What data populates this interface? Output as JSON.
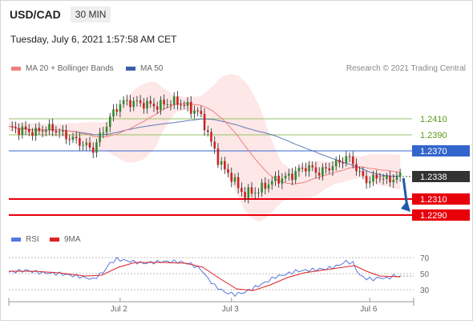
{
  "header": {
    "pair": "USD/CAD",
    "timeframe": "30 MIN",
    "datetime": "Tuesday, July 6, 2021 1:57:58 AM CET"
  },
  "legend": {
    "ma20": "MA 20 + Bollinger Bands",
    "ma50": "MA 50",
    "rsi": "RSI",
    "nine_ma": "9MA",
    "credit": "Research © 2021 Trading Central"
  },
  "colors": {
    "ma20": "#f08080",
    "ma50": "#3a5fa8",
    "bollinger_fill": "#fde3e3",
    "candle_up": "#2e8b2e",
    "candle_down": "#cc2222",
    "resistance": "#99c266",
    "pivot": "#3366cc",
    "support": "#e8000b",
    "price_tag": "#333333",
    "rsi": "#5577dd",
    "rsi_ma": "#dd2222"
  },
  "chart_data": [
    {
      "type": "candlestick",
      "title": "USD/CAD",
      "x_ticks": [
        "Jul 2",
        "Jul 3",
        "Jul 6"
      ],
      "ylim": [
        1.227,
        1.245
      ],
      "key_levels": [
        {
          "label": "1.2410",
          "value": 1.241,
          "kind": "resistance"
        },
        {
          "label": "1.2390",
          "value": 1.239,
          "kind": "resistance"
        },
        {
          "label": "1.2370",
          "value": 1.237,
          "kind": "pivot"
        },
        {
          "label": "1.2338",
          "value": 1.2338,
          "kind": "last"
        },
        {
          "label": "1.2310",
          "value": 1.231,
          "kind": "support"
        },
        {
          "label": "1.2290",
          "value": 1.229,
          "kind": "support"
        }
      ],
      "price_path": [
        [
          0,
          1.2398
        ],
        [
          8,
          1.2396
        ],
        [
          16,
          1.2393
        ],
        [
          22,
          1.2398
        ],
        [
          28,
          1.2396
        ],
        [
          34,
          1.2388
        ],
        [
          40,
          1.2383
        ],
        [
          46,
          1.2376
        ],
        [
          50,
          1.2372
        ],
        [
          54,
          1.2388
        ],
        [
          58,
          1.2403
        ],
        [
          62,
          1.2418
        ],
        [
          66,
          1.2429
        ],
        [
          70,
          1.2431
        ],
        [
          76,
          1.243
        ],
        [
          82,
          1.2428
        ],
        [
          88,
          1.2426
        ],
        [
          94,
          1.243
        ],
        [
          100,
          1.2431
        ],
        [
          104,
          1.2427
        ],
        [
          108,
          1.2422
        ],
        [
          112,
          1.2419
        ],
        [
          116,
          1.2403
        ],
        [
          120,
          1.238
        ],
        [
          124,
          1.236
        ],
        [
          128,
          1.2346
        ],
        [
          132,
          1.2338
        ],
        [
          136,
          1.2324
        ],
        [
          140,
          1.2316
        ],
        [
          144,
          1.2319
        ],
        [
          148,
          1.232
        ],
        [
          152,
          1.2327
        ],
        [
          156,
          1.2332
        ],
        [
          160,
          1.2335
        ],
        [
          164,
          1.2337
        ],
        [
          168,
          1.234
        ],
        [
          172,
          1.2346
        ],
        [
          176,
          1.235
        ],
        [
          180,
          1.2347
        ],
        [
          184,
          1.2343
        ],
        [
          188,
          1.2347
        ],
        [
          192,
          1.2352
        ],
        [
          196,
          1.2356
        ],
        [
          200,
          1.2362
        ],
        [
          204,
          1.2356
        ],
        [
          208,
          1.2341
        ],
        [
          212,
          1.2333
        ],
        [
          216,
          1.2335
        ],
        [
          220,
          1.2338
        ],
        [
          224,
          1.2333
        ],
        [
          228,
          1.2336
        ],
        [
          232,
          1.2338
        ]
      ],
      "forecast": {
        "from": 1.2338,
        "to": 1.229
      }
    },
    {
      "type": "line",
      "title": "RSI",
      "ylim": [
        20,
        80
      ],
      "y_ticks": [
        70,
        50,
        30
      ],
      "series_names": [
        "RSI",
        "9MA"
      ],
      "rsi_path": [
        [
          0,
          52
        ],
        [
          10,
          54
        ],
        [
          20,
          51
        ],
        [
          30,
          50
        ],
        [
          40,
          47
        ],
        [
          50,
          43
        ],
        [
          56,
          52
        ],
        [
          60,
          63
        ],
        [
          64,
          68
        ],
        [
          70,
          66
        ],
        [
          80,
          63
        ],
        [
          90,
          65
        ],
        [
          100,
          65
        ],
        [
          108,
          62
        ],
        [
          114,
          55
        ],
        [
          118,
          44
        ],
        [
          122,
          35
        ],
        [
          128,
          27
        ],
        [
          134,
          24
        ],
        [
          140,
          27
        ],
        [
          146,
          33
        ],
        [
          152,
          39
        ],
        [
          158,
          46
        ],
        [
          164,
          49
        ],
        [
          170,
          53
        ],
        [
          176,
          54
        ],
        [
          182,
          55
        ],
        [
          188,
          56
        ],
        [
          194,
          59
        ],
        [
          200,
          65
        ],
        [
          204,
          63
        ],
        [
          208,
          48
        ],
        [
          212,
          44
        ],
        [
          216,
          43
        ],
        [
          220,
          45
        ],
        [
          224,
          44
        ],
        [
          228,
          47
        ],
        [
          232,
          47
        ]
      ],
      "ma_path": [
        [
          0,
          53
        ],
        [
          15,
          53
        ],
        [
          30,
          51
        ],
        [
          45,
          47
        ],
        [
          55,
          48
        ],
        [
          65,
          58
        ],
        [
          75,
          64
        ],
        [
          90,
          64
        ],
        [
          105,
          63
        ],
        [
          115,
          58
        ],
        [
          125,
          44
        ],
        [
          135,
          31
        ],
        [
          145,
          29
        ],
        [
          155,
          36
        ],
        [
          165,
          45
        ],
        [
          175,
          51
        ],
        [
          185,
          54
        ],
        [
          195,
          57
        ],
        [
          205,
          60
        ],
        [
          212,
          53
        ],
        [
          220,
          47
        ],
        [
          232,
          46
        ]
      ]
    }
  ]
}
